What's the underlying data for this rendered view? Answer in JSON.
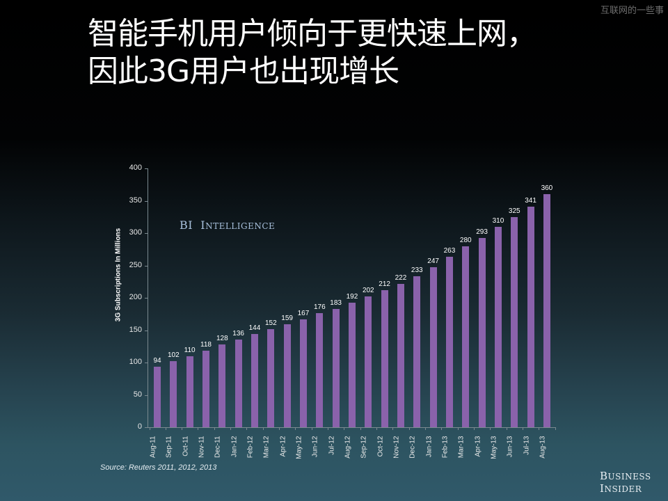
{
  "watermark": "互联网的一些事",
  "title": {
    "line1": "智能手机用户倾向于更快速上网，",
    "line2": "因此3G用户也出现增长"
  },
  "brand_overlay": {
    "first": "BI",
    "second_initial": "I",
    "second_rest": "NTELLIGENCE"
  },
  "source": "Source: Reuters 2011, 2012, 2013",
  "logo": {
    "line1_initial": "B",
    "line1_rest": "USINESS",
    "line2_initial": "I",
    "line2_rest": "NSIDER"
  },
  "colors": {
    "bar": "#8a62ab",
    "text": "#ffffff",
    "brand": "#a8c0dc"
  },
  "chart_data": {
    "type": "bar",
    "title": "",
    "xlabel": "",
    "ylabel": "3G Subscriptions In Millions",
    "ylim": [
      0,
      400
    ],
    "yticks": [
      0,
      50,
      100,
      150,
      200,
      250,
      300,
      350,
      400
    ],
    "grid": false,
    "legend": null,
    "categories": [
      "Aug-11",
      "Sep-11",
      "Oct-11",
      "Nov-11",
      "Dec-11",
      "Jan-12",
      "Feb-12",
      "Mar-12",
      "Apr-12",
      "May-12",
      "Jun-12",
      "Jul-12",
      "Aug-12",
      "Sep-12",
      "Oct-12",
      "Nov-12",
      "Dec-12",
      "Jan-13",
      "Feb-13",
      "Mar-13",
      "Apr-13",
      "May-13",
      "Jun-13",
      "Jul-13",
      "Aug-13"
    ],
    "values": [
      94,
      102,
      110,
      118,
      128,
      136,
      144,
      152,
      159,
      167,
      176,
      183,
      192,
      202,
      212,
      222,
      233,
      247,
      263,
      280,
      293,
      310,
      325,
      341,
      360
    ],
    "annotations": [
      "BI Intelligence"
    ],
    "source": "Source: Reuters 2011, 2012, 2013"
  }
}
